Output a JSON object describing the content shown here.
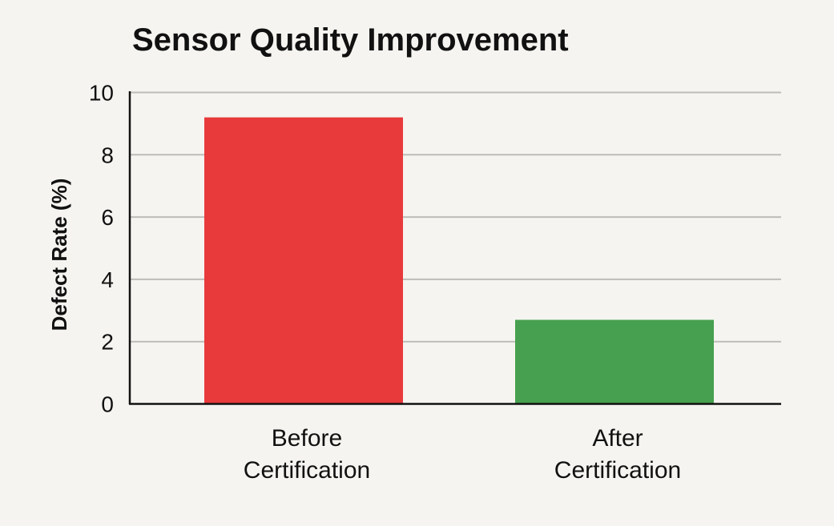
{
  "chart_data": {
    "type": "bar",
    "title": "Sensor Quality Improvement",
    "xlabel": "",
    "ylabel": "Defect Rate (%)",
    "ylim": [
      0,
      10
    ],
    "yticks": [
      0,
      2,
      4,
      6,
      8,
      10
    ],
    "grid": true,
    "categories": [
      [
        "Before",
        "Certification"
      ],
      [
        "After",
        "Certification"
      ]
    ],
    "values": [
      9.2,
      2.7
    ],
    "colors": [
      "#e8393b",
      "#47a04f"
    ]
  }
}
